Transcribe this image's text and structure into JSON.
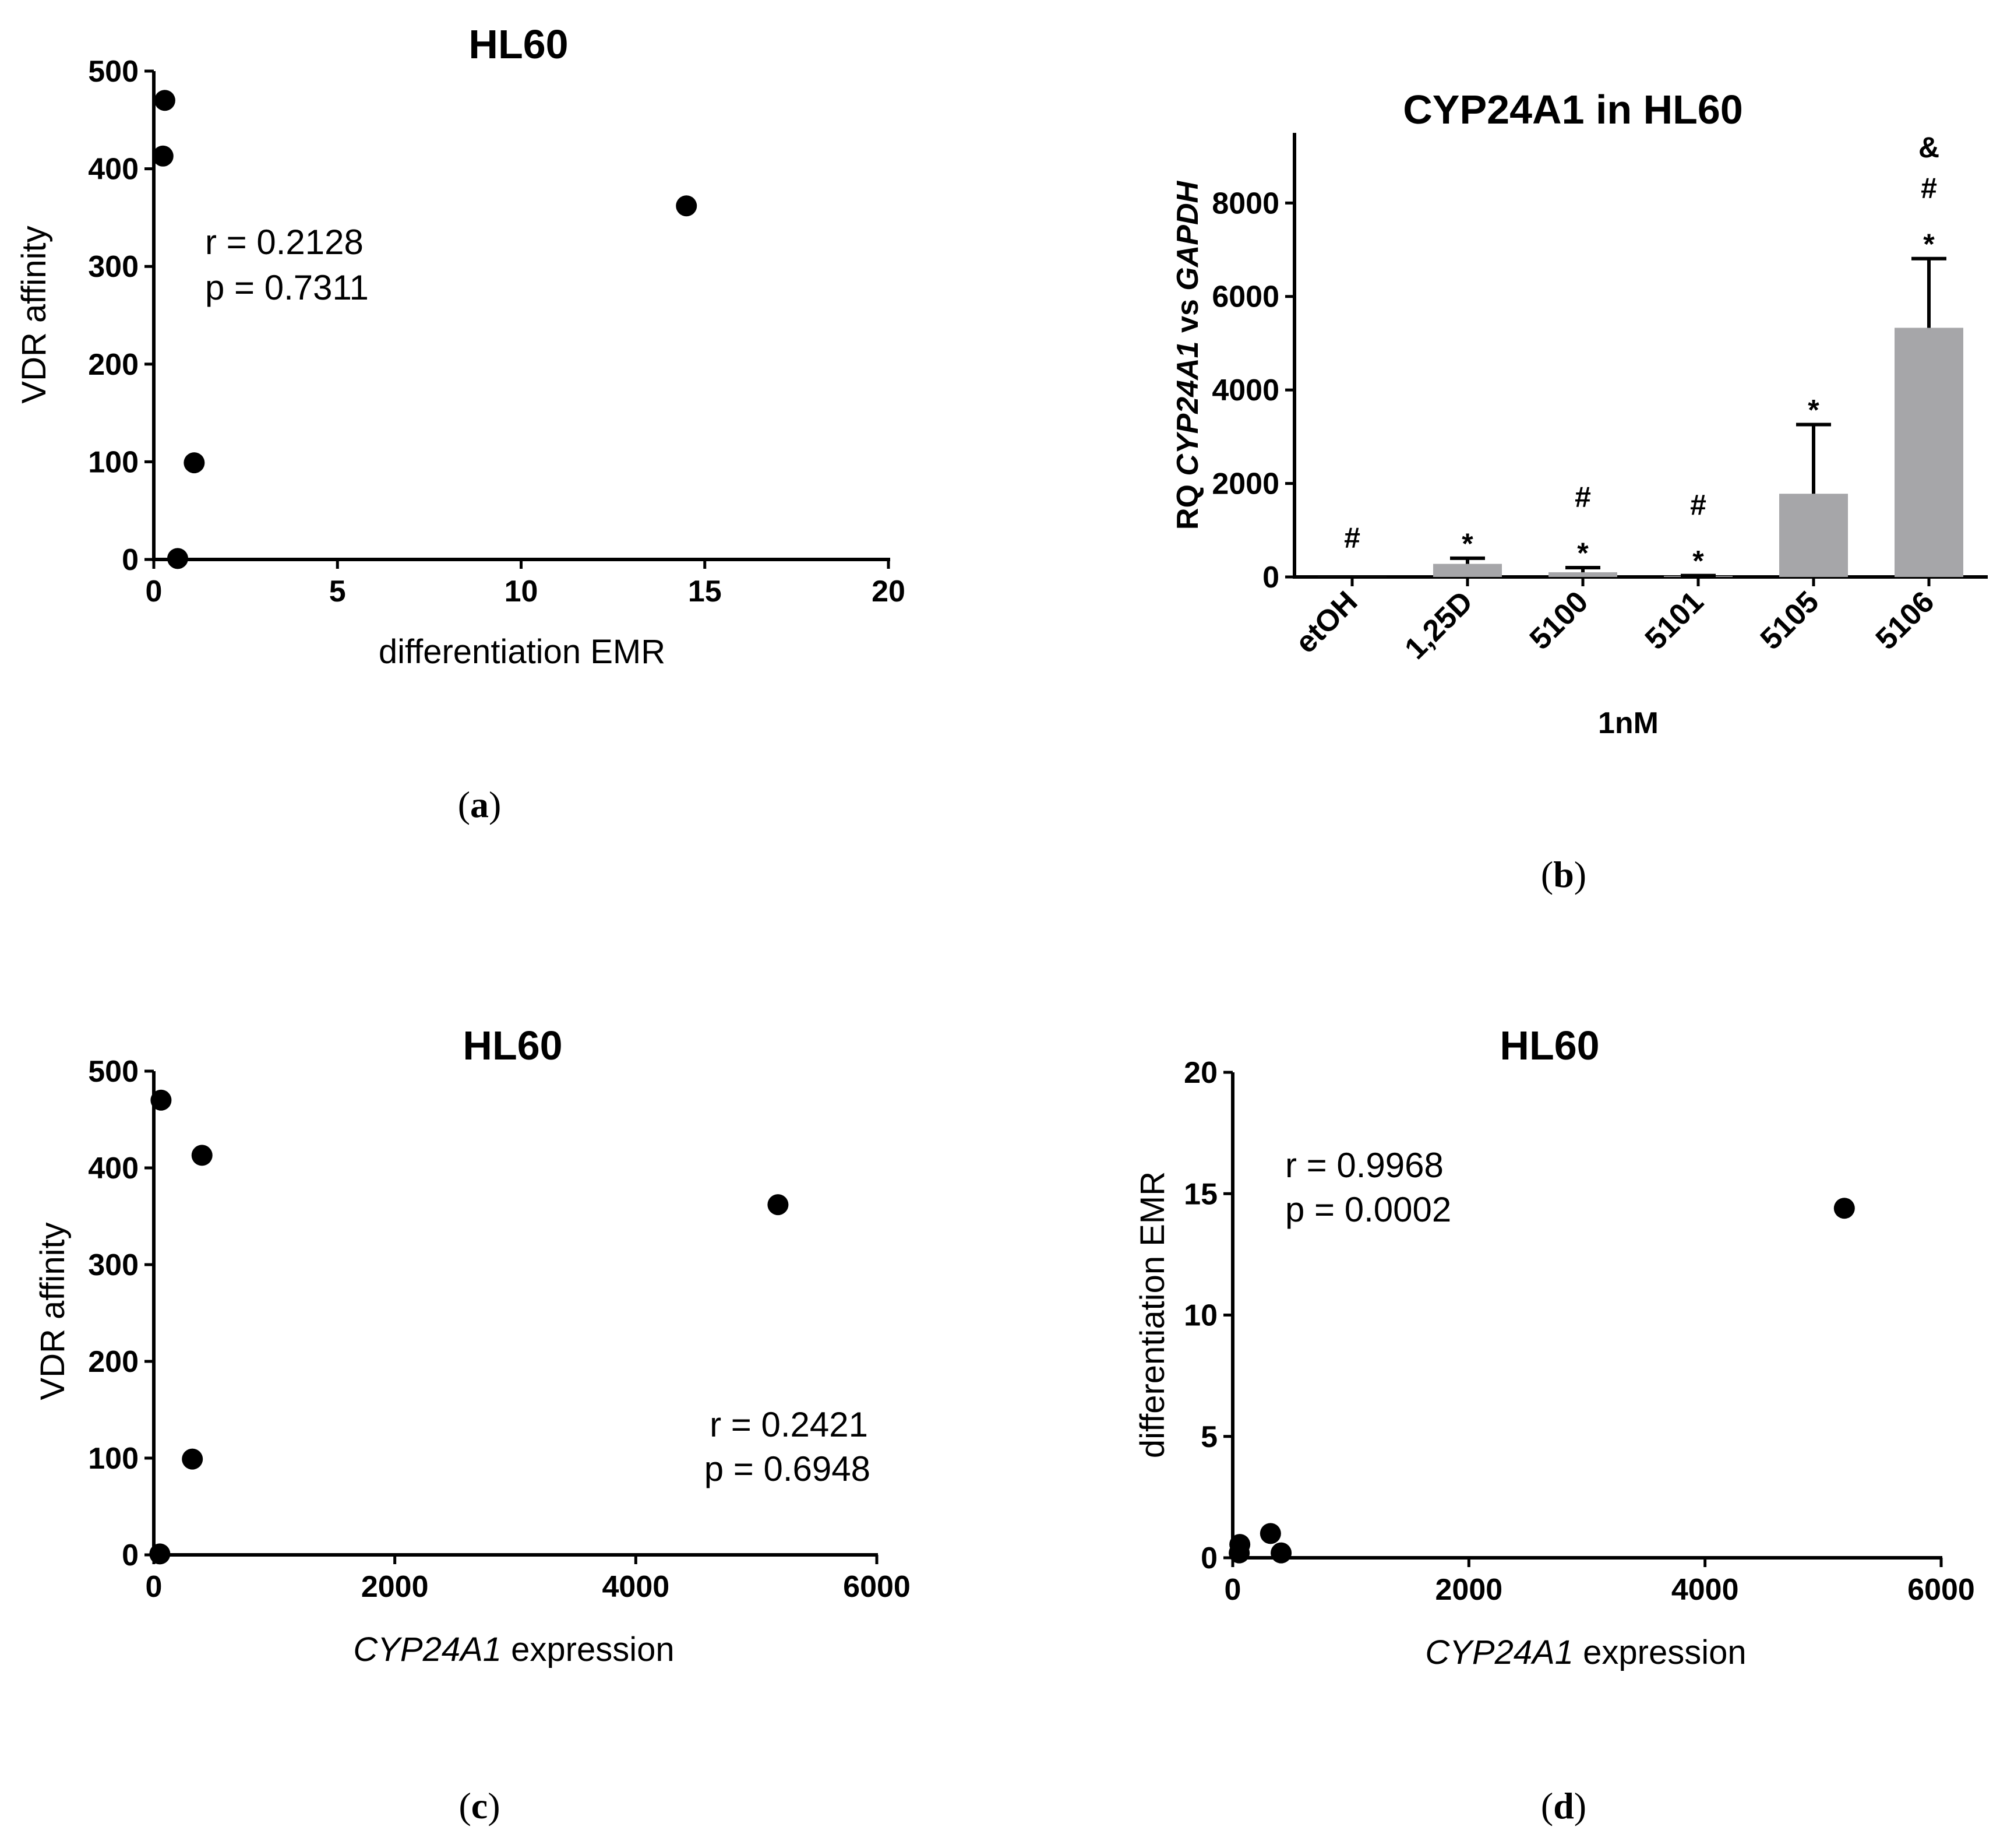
{
  "captions": {
    "a": "a",
    "b": "b",
    "c": "c",
    "d": "d"
  },
  "chart_data": [
    {
      "id": "a",
      "type": "scatter",
      "title": "HL60",
      "xlabel": "differentiation EMR",
      "ylabel": "VDR affinity",
      "xlim": [
        0,
        20
      ],
      "ylim": [
        0,
        500
      ],
      "xticks": [
        "0",
        "5",
        "10",
        "15",
        "20"
      ],
      "yticks": [
        "0",
        "100",
        "200",
        "300",
        "400",
        "500"
      ],
      "points": [
        {
          "x": 0.3,
          "y": 470
        },
        {
          "x": 0.25,
          "y": 413
        },
        {
          "x": 14.5,
          "y": 362
        },
        {
          "x": 1.1,
          "y": 99
        },
        {
          "x": 0.65,
          "y": 1
        }
      ],
      "stats": {
        "r": "r = 0.2128",
        "p": "p = 0.7311"
      }
    },
    {
      "id": "b",
      "type": "bar",
      "title": "CYP24A1 in HL60",
      "ylabel_parts": {
        "prefix": "RQ ",
        "gene": "CYP24A1",
        "middle": " vs ",
        "ref": "GAPDH"
      },
      "xlabel": "1nM",
      "ylim": [
        0,
        9500
      ],
      "yticks": [
        "0",
        "2000",
        "4000",
        "6000",
        "8000"
      ],
      "categories": [
        "etOH",
        "1,25D",
        "5100",
        "5101",
        "5105",
        "5106"
      ],
      "values": [
        1,
        280,
        100,
        20,
        1780,
        5330
      ],
      "errors": [
        0,
        120,
        100,
        10,
        1480,
        1480
      ],
      "significance": [
        [
          "#"
        ],
        [
          "*"
        ],
        [
          "*",
          "#"
        ],
        [
          "*",
          "#"
        ],
        [
          "*"
        ],
        [
          "*",
          "#",
          "&"
        ]
      ],
      "colors": {
        "bar": "#a6a6a9"
      }
    },
    {
      "id": "c",
      "type": "scatter",
      "title": "HL60",
      "xlabel_parts": {
        "gene": "CYP24A1",
        "rest": " expression"
      },
      "ylabel": "VDR affinity",
      "xlim": [
        0,
        6000
      ],
      "ylim": [
        0,
        500
      ],
      "xticks": [
        "0",
        "2000",
        "4000",
        "6000"
      ],
      "yticks": [
        "0",
        "100",
        "200",
        "300",
        "400",
        "500"
      ],
      "points": [
        {
          "x": 60,
          "y": 470
        },
        {
          "x": 400,
          "y": 413
        },
        {
          "x": 5180,
          "y": 362
        },
        {
          "x": 320,
          "y": 99
        },
        {
          "x": 50,
          "y": 1
        }
      ],
      "stats": {
        "r": "r = 0.2421",
        "p": "p = 0.6948"
      }
    },
    {
      "id": "d",
      "type": "scatter",
      "title": "HL60",
      "xlabel_parts": {
        "gene": "CYP24A1",
        "rest": " expression"
      },
      "ylabel": "differentiation EMR",
      "xlim": [
        0,
        6000
      ],
      "ylim": [
        0,
        20
      ],
      "xticks": [
        "0",
        "2000",
        "4000",
        "6000"
      ],
      "yticks": [
        "0",
        "5",
        "10",
        "15",
        "20"
      ],
      "points": [
        {
          "x": 60,
          "y": 0.55
        },
        {
          "x": 55,
          "y": 0.2
        },
        {
          "x": 5180,
          "y": 14.4
        },
        {
          "x": 320,
          "y": 1.0
        },
        {
          "x": 410,
          "y": 0.2
        }
      ],
      "stats": {
        "r": "r = 0.9968",
        "p": "p = 0.0002"
      }
    }
  ]
}
